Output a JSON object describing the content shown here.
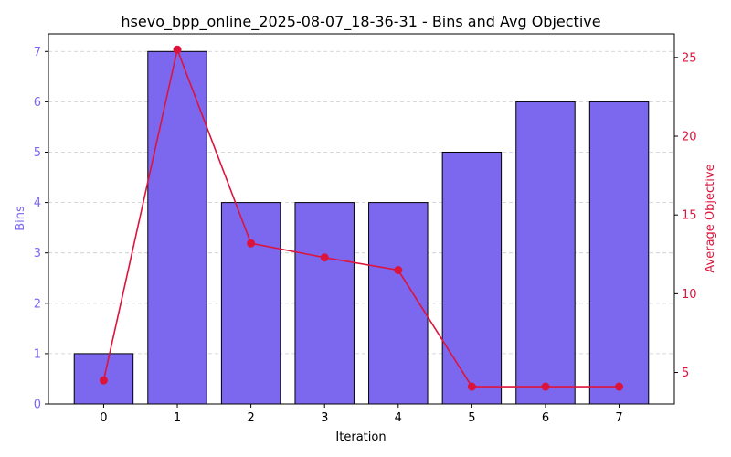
{
  "chart_data": {
    "type": "bar",
    "title": "hsevo_bpp_online_2025-08-07_18-36-31 - Bins and Avg Objective",
    "xlabel": "Iteration",
    "categories": [
      "0",
      "1",
      "2",
      "3",
      "4",
      "5",
      "6",
      "7"
    ],
    "series": [
      {
        "type": "bar",
        "axis": "left",
        "color": "#7b68ee",
        "edge_color": "#000000",
        "values": [
          1,
          7,
          4,
          4,
          4,
          5,
          6,
          6
        ]
      },
      {
        "type": "line",
        "axis": "right",
        "color": "#dc143c",
        "marker": "circle",
        "values": [
          4.5,
          25.5,
          13.2,
          12.3,
          11.5,
          4.1,
          4.1,
          4.1
        ]
      }
    ],
    "y_left": {
      "label": "Bins",
      "color": "#7b68ee",
      "range": [
        0,
        7.35
      ],
      "ticks": [
        0,
        1,
        2,
        3,
        4,
        5,
        6,
        7
      ]
    },
    "y_right": {
      "label": "Average Objective",
      "color": "#dc143c",
      "range": [
        3.0,
        26.5
      ],
      "ticks": [
        5,
        10,
        15,
        20,
        25
      ]
    },
    "grid": {
      "axis": "y",
      "style": "dashed",
      "color": "#cccccc"
    }
  }
}
